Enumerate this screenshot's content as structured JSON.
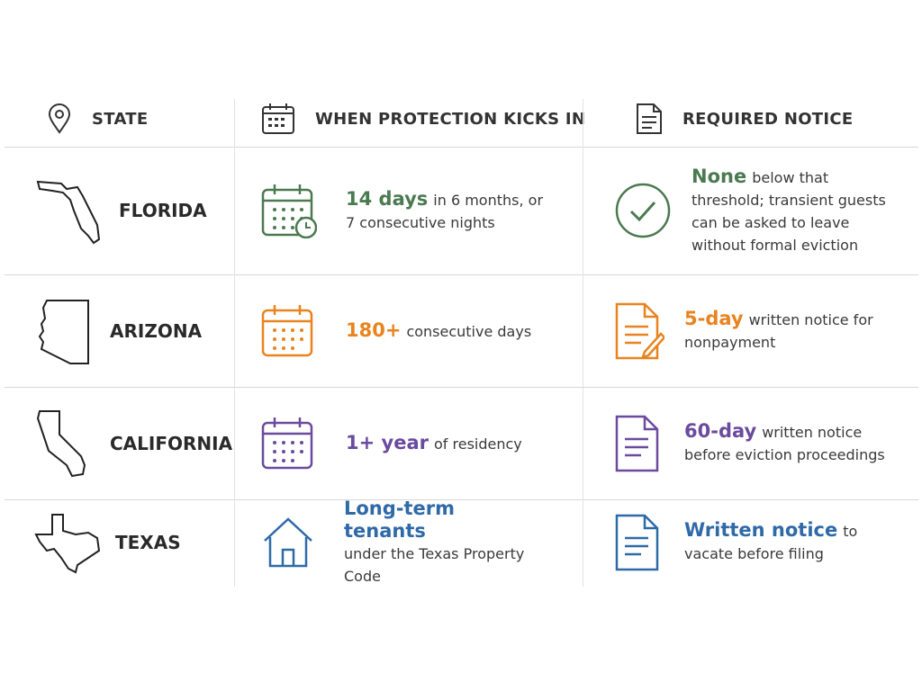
{
  "table": {
    "header": [
      "STATE",
      "WHEN PROTECTION KICKS IN",
      "REQUIRED NOTICE"
    ],
    "rows": [
      {
        "state": "FLORIDA",
        "color": "#4b7a50",
        "protection": {
          "highlight": "14 days",
          "text": "in 6 months, or 7 consecutive nights"
        },
        "notice": {
          "highlight": "None",
          "text": "below that threshold; transient guests can be asked to leave without formal eviction"
        }
      },
      {
        "state": "ARIZONA",
        "color": "#e8841f",
        "protection": {
          "highlight": "180+",
          "text": "consecutive days"
        },
        "notice": {
          "highlight": "5-day",
          "text": "written notice for nonpayment"
        }
      },
      {
        "state": "CALIFORNIA",
        "color": "#6a4b9e",
        "protection": {
          "highlight": "1+ year",
          "text": "of residency"
        },
        "notice": {
          "highlight": "60-day",
          "text": "written notice before eviction proceedings"
        }
      },
      {
        "state": "TEXAS",
        "color": "#2f6aa8",
        "protection": {
          "highlight": "Long-term tenants",
          "text": "under the Texas Property Code"
        },
        "notice": {
          "highlight": "Written notice",
          "text": "to vacate before filing"
        }
      }
    ]
  }
}
